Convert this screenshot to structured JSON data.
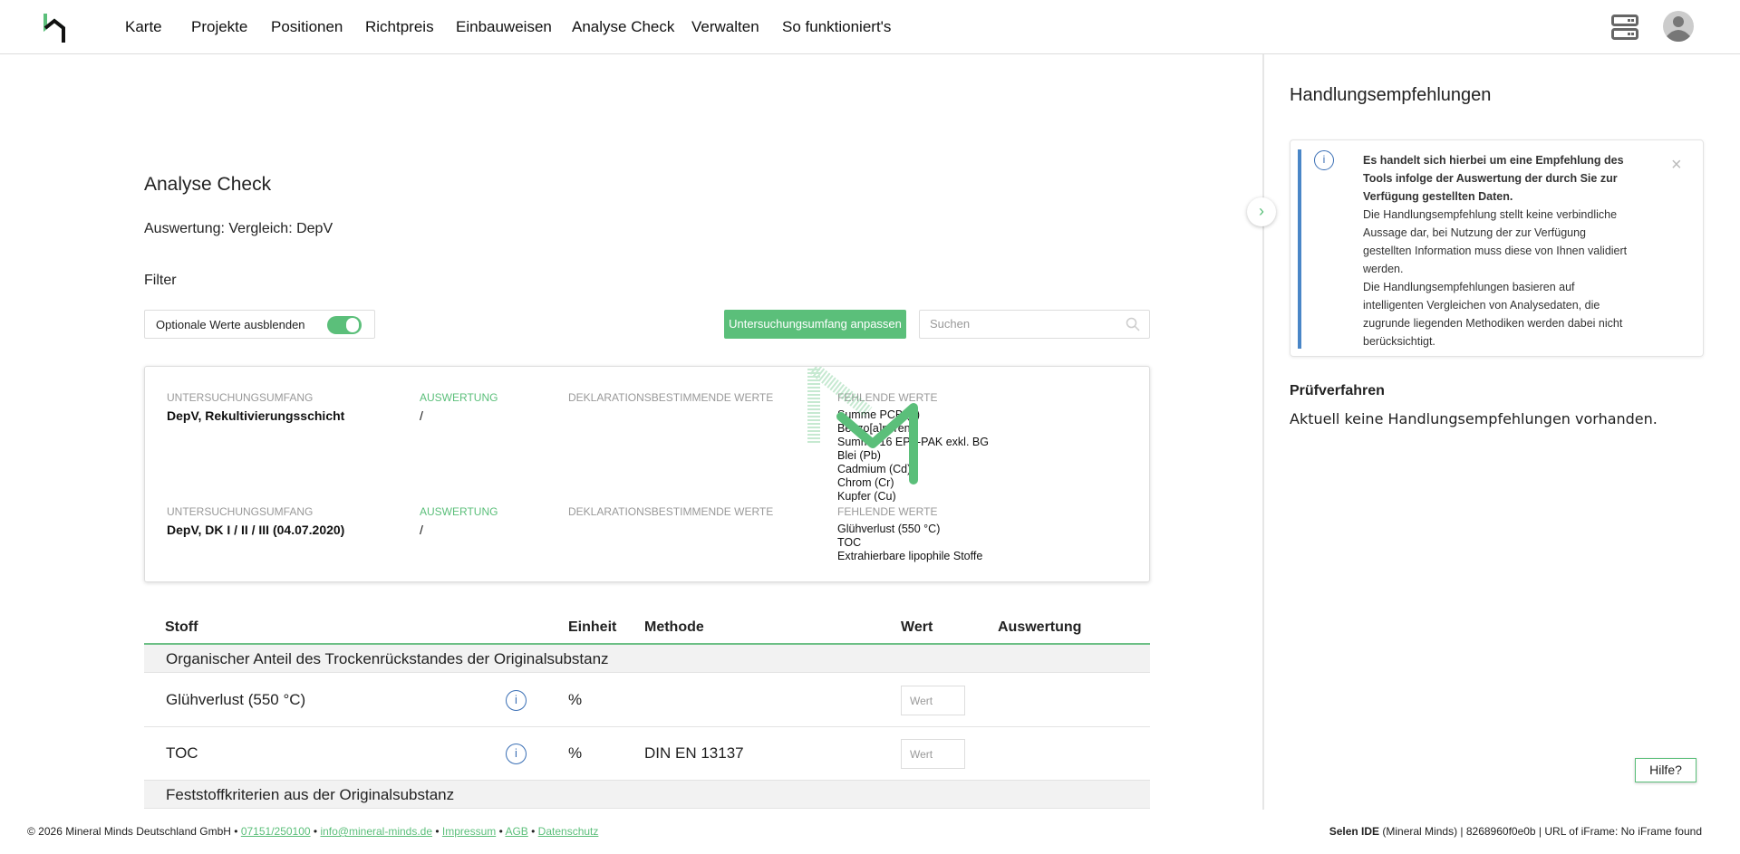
{
  "nav": {
    "items": [
      "Karte",
      "Projekte",
      "Positionen",
      "Richtpreis",
      "Einbauweisen",
      "Analyse Check",
      "Verwalten",
      "So funktioniert's"
    ]
  },
  "page": {
    "title": "Analyse Check",
    "subtitle": "Auswertung: Vergleich: DepV",
    "filter_label": "Filter",
    "toggle_label": "Optionale Werte ausblenden",
    "toggle_on": true,
    "adjust_button": "Untersuchungsumfang anpassen",
    "search_placeholder": "Suchen"
  },
  "summary": [
    {
      "scope_label": "UNTERSUCHUNGSUMFANG",
      "scope": "DepV, Rekultivierungsschicht",
      "eval_label": "AUSWERTUNG",
      "eval": "/",
      "decl_label": "DEKLARATIONSBESTIMMENDE WERTE",
      "missing_label": "FEHLENDE WERTE",
      "missing": [
        "Summe PCB (7)",
        "Benzo[a]pyren",
        "Summe 16 EPA-PAK exkl. BG",
        "Blei (Pb)",
        "Cadmium (Cd)",
        "Chrom (Cr)",
        "Kupfer (Cu)"
      ]
    },
    {
      "scope_label": "UNTERSUCHUNGSUMFANG",
      "scope": "DepV, DK I / II / III (04.07.2020)",
      "eval_label": "AUSWERTUNG",
      "eval": "/",
      "decl_label": "DEKLARATIONSBESTIMMENDE WERTE",
      "missing_label": "FEHLENDE WERTE",
      "missing": [
        "Glühverlust (550 °C)",
        "TOC",
        "Extrahierbare lipophile Stoffe"
      ]
    }
  ],
  "table": {
    "headers": {
      "stoff": "Stoff",
      "einheit": "Einheit",
      "methode": "Methode",
      "wert": "Wert",
      "auswertung": "Auswertung"
    },
    "groups": [
      "Organischer Anteil des Trockenrückstandes der Originalsubstanz",
      "Feststoffkriterien aus der Originalsubstanz"
    ],
    "rows": [
      {
        "stoff": "Glühverlust (550 °C)",
        "einheit": "%",
        "methode": "",
        "wert_placeholder": "Wert"
      },
      {
        "stoff": "TOC",
        "einheit": "%",
        "methode": "DIN EN 13137",
        "wert_placeholder": "Wert"
      }
    ]
  },
  "right": {
    "title": "Handlungsempfehlungen",
    "alert_bold": "Es handelt sich hierbei um eine Empfehlung des Tools infolge der Auswertung der durch Sie zur Verfügung gestellten Daten.",
    "alert_p1": "Die Handlungsempfehlung stellt keine verbindliche Aussage dar, bei Nutzung der zur Verfügung gestellten Information muss diese von Ihnen validiert werden.",
    "alert_p2": "Die Handlungsempfehlungen basieren auf intelligenten Vergleichen von Analysedaten, die zugrunde liegenden Methodiken werden dabei nicht berücksichtigt.",
    "close": "×",
    "section": "Prüfverfahren",
    "empty": "Aktuell keine Handlungsempfehlungen vorhanden."
  },
  "help": "Hilfe?",
  "footer": {
    "copyright": "© 2026 Mineral Minds Deutschland GmbH",
    "phone": "07151/250100",
    "email": "info@mineral-minds.de",
    "impressum": "Impressum",
    "agb": "AGB",
    "datenschutz": "Datenschutz",
    "sep": " • ",
    "right_bold": "Selen IDE",
    "right_rest": " (Mineral Minds) | 8268960f0e0b | URL of iFrame: No iFrame found"
  },
  "colors": {
    "accent": "#5bbf7a",
    "info": "#3a6fb5"
  }
}
